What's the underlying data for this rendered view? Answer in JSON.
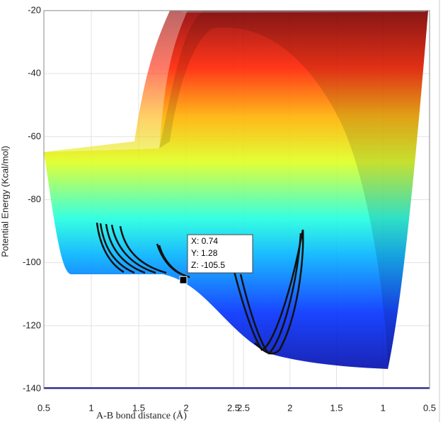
{
  "chart_data": {
    "type": "surface",
    "ylabel": "Potential Energy (Kcal/mol)",
    "xlabel": "A-B bond distance (Å)",
    "ylim": [
      -140,
      -20
    ],
    "yticks": [
      -20,
      -40,
      -60,
      -80,
      -100,
      -120,
      -140
    ],
    "xlim": [
      0.5,
      2.5
    ],
    "xticks": [
      0.5,
      1,
      1.5,
      2,
      2.5
    ],
    "x2lim": [
      2.5,
      0.5
    ],
    "x2ticks": [
      2.5,
      2,
      1.5,
      1,
      0.5
    ],
    "grid": true,
    "datatip": {
      "values": [
        0.74,
        1.28,
        -105.5
      ],
      "value_labels": [
        "X: 0.74",
        "Y: 1.28",
        "Z: -105.5"
      ]
    }
  }
}
